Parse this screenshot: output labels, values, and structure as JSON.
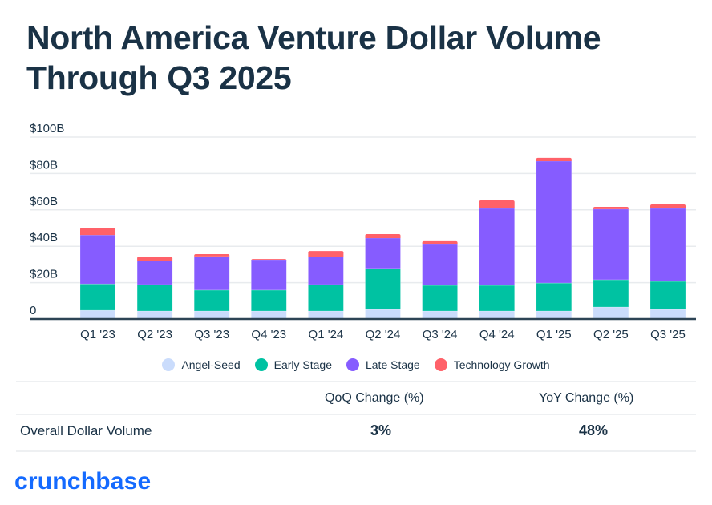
{
  "title": "North America Venture Dollar Volume Through Q3 2025",
  "colors": {
    "angel_seed": "#cadcfc",
    "early_stage": "#00c2a2",
    "late_stage": "#865cff",
    "technology_growth": "#ff6169",
    "text": "#1a3246",
    "grid": "#e8ebee",
    "axis": "#2d4455",
    "brand": "#146aff"
  },
  "chart_data": {
    "type": "bar",
    "stacked": true,
    "title": "North America Venture Dollar Volume Through Q3 2025",
    "xlabel": "",
    "ylabel": "",
    "ylim": [
      0,
      100
    ],
    "yticks": [
      0,
      20,
      40,
      60,
      80,
      100
    ],
    "ytick_labels": [
      "0",
      "$20B",
      "$40B",
      "$60B",
      "$80B",
      "$100B"
    ],
    "grid": true,
    "legend_position": "bottom",
    "categories": [
      "Q1 '23",
      "Q2 '23",
      "Q3 '23",
      "Q4 '23",
      "Q1 '24",
      "Q2 '24",
      "Q3 '24",
      "Q4 '24",
      "Q1 '25",
      "Q2 '25",
      "Q3 '25"
    ],
    "series": [
      {
        "name": "Angel-Seed",
        "key": "angel_seed",
        "values": [
          4.8,
          4.4,
          4.4,
          4.4,
          4.4,
          5.3,
          4.4,
          4.4,
          4.4,
          6.6,
          5.3
        ]
      },
      {
        "name": "Early Stage",
        "key": "early_stage",
        "values": [
          14.5,
          14.5,
          11.5,
          11.5,
          14.5,
          22.5,
          14.1,
          14.1,
          15.4,
          15.0,
          15.4
        ]
      },
      {
        "name": "Late Stage",
        "key": "late_stage",
        "values": [
          26.9,
          13.2,
          18.5,
          16.7,
          15.4,
          16.7,
          22.5,
          42.3,
          67.0,
          38.8,
          40.1
        ]
      },
      {
        "name": "Technology Growth",
        "key": "technology_growth",
        "values": [
          4.0,
          2.2,
          1.3,
          0.4,
          3.1,
          2.2,
          1.8,
          4.4,
          1.8,
          1.3,
          2.2
        ]
      }
    ]
  },
  "summary_table": {
    "columns": [
      "",
      "QoQ Change (%)",
      "YoY Change (%)"
    ],
    "rows": [
      {
        "label": "Overall Dollar Volume",
        "qoq": "3%",
        "yoy": "48%"
      }
    ]
  },
  "logo": {
    "text": "crunchbase"
  }
}
